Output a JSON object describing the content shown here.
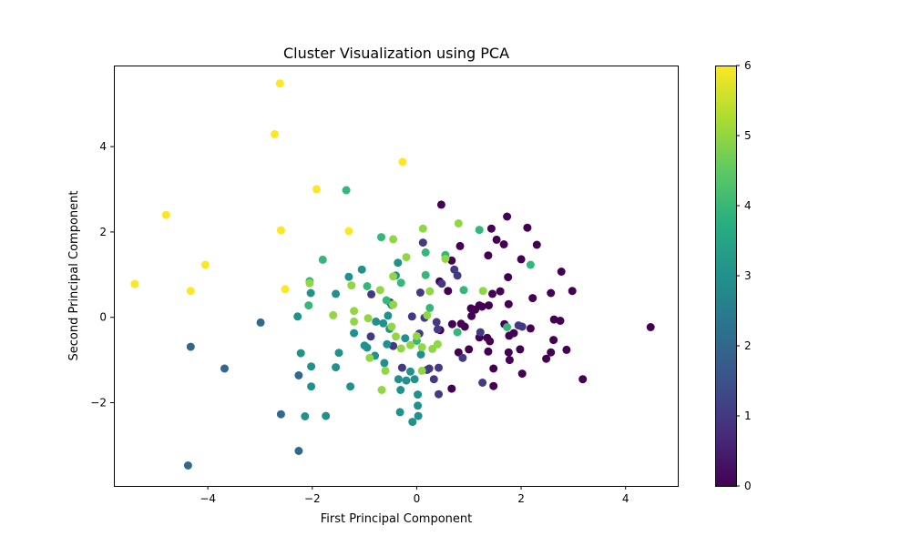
{
  "chart_data": {
    "type": "scatter",
    "title": "Cluster Visualization using PCA",
    "xlabel": "First Principal Component",
    "ylabel": "Second Principal Component",
    "xlim": [
      -5.8,
      5.0
    ],
    "ylim": [
      -3.95,
      5.9
    ],
    "xticks": [
      -4,
      -2,
      0,
      2,
      4
    ],
    "yticks": [
      -2,
      0,
      2,
      4
    ],
    "grid": false,
    "colorbar": {
      "min": 0,
      "max": 6,
      "ticks": [
        0,
        1,
        2,
        3,
        4,
        5,
        6
      ],
      "colormap": "viridis"
    },
    "points": [
      {
        "x": 4.48,
        "y": -0.23,
        "c": 0
      },
      {
        "x": 3.18,
        "y": -1.45,
        "c": 0
      },
      {
        "x": 2.98,
        "y": 0.62,
        "c": 0
      },
      {
        "x": 2.77,
        "y": 1.07,
        "c": 0
      },
      {
        "x": 2.75,
        "y": -0.08,
        "c": 0
      },
      {
        "x": 2.63,
        "y": -0.05,
        "c": 0
      },
      {
        "x": 2.87,
        "y": -0.76,
        "c": 0
      },
      {
        "x": 2.62,
        "y": -0.53,
        "c": 0
      },
      {
        "x": 2.57,
        "y": -0.82,
        "c": 0
      },
      {
        "x": 2.48,
        "y": -0.97,
        "c": 0
      },
      {
        "x": 2.57,
        "y": 0.57,
        "c": 0
      },
      {
        "x": 2.3,
        "y": 1.7,
        "c": 0
      },
      {
        "x": 2.12,
        "y": 2.1,
        "c": 0
      },
      {
        "x": 2.22,
        "y": 0.45,
        "c": 0
      },
      {
        "x": 2.18,
        "y": -0.26,
        "c": 0
      },
      {
        "x": 2.0,
        "y": 1.36,
        "c": 0
      },
      {
        "x": 1.98,
        "y": -0.75,
        "c": 0
      },
      {
        "x": 2.02,
        "y": -1.32,
        "c": 0
      },
      {
        "x": 1.86,
        "y": -0.37,
        "c": 0
      },
      {
        "x": 1.77,
        "y": -0.43,
        "c": 0
      },
      {
        "x": 1.76,
        "y": -0.82,
        "c": 0
      },
      {
        "x": 1.78,
        "y": -1.0,
        "c": 0
      },
      {
        "x": 1.68,
        "y": -0.16,
        "c": 0
      },
      {
        "x": 1.76,
        "y": 0.31,
        "c": 0
      },
      {
        "x": 1.75,
        "y": 0.94,
        "c": 0
      },
      {
        "x": 1.73,
        "y": 2.36,
        "c": 0
      },
      {
        "x": 1.67,
        "y": 1.71,
        "c": 0
      },
      {
        "x": 1.53,
        "y": 1.82,
        "c": 0
      },
      {
        "x": 1.6,
        "y": 0.61,
        "c": 0
      },
      {
        "x": 1.45,
        "y": 0.55,
        "c": 0
      },
      {
        "x": 1.43,
        "y": 2.08,
        "c": 0
      },
      {
        "x": 1.37,
        "y": 1.45,
        "c": 0
      },
      {
        "x": 1.38,
        "y": 0.28,
        "c": 0
      },
      {
        "x": 1.35,
        "y": -0.48,
        "c": 0
      },
      {
        "x": 1.4,
        "y": -0.56,
        "c": 0
      },
      {
        "x": 1.37,
        "y": -0.8,
        "c": 0
      },
      {
        "x": 1.47,
        "y": -1.2,
        "c": 0
      },
      {
        "x": 1.47,
        "y": -1.61,
        "c": 0
      },
      {
        "x": 1.25,
        "y": 0.25,
        "c": 0
      },
      {
        "x": 1.2,
        "y": 0.28,
        "c": 0
      },
      {
        "x": 1.12,
        "y": 0.18,
        "c": 0
      },
      {
        "x": 1.2,
        "y": -0.47,
        "c": 0
      },
      {
        "x": 1.04,
        "y": 0.21,
        "c": 0
      },
      {
        "x": 1.05,
        "y": 0.03,
        "c": 0
      },
      {
        "x": 1.0,
        "y": -0.75,
        "c": 0
      },
      {
        "x": 0.85,
        "y": -0.15,
        "c": 0
      },
      {
        "x": 0.92,
        "y": -0.22,
        "c": 0
      },
      {
        "x": 0.8,
        "y": -0.82,
        "c": 0
      },
      {
        "x": 0.83,
        "y": 1.67,
        "c": 0
      },
      {
        "x": 0.67,
        "y": 1.33,
        "c": 0
      },
      {
        "x": 0.6,
        "y": 0.62,
        "c": 0
      },
      {
        "x": 0.47,
        "y": 2.64,
        "c": 0
      },
      {
        "x": 0.44,
        "y": 0.84,
        "c": 0
      },
      {
        "x": 0.68,
        "y": -0.16,
        "c": 0
      },
      {
        "x": 0.45,
        "y": -0.3,
        "c": 0
      },
      {
        "x": 0.67,
        "y": -1.67,
        "c": 0
      },
      {
        "x": 1.26,
        "y": -1.53,
        "c": 1
      },
      {
        "x": 0.78,
        "y": 0.98,
        "c": 1
      },
      {
        "x": 0.72,
        "y": 1.12,
        "c": 1
      },
      {
        "x": 0.48,
        "y": 0.79,
        "c": 1
      },
      {
        "x": 0.38,
        "y": -0.11,
        "c": 1
      },
      {
        "x": 0.4,
        "y": -0.28,
        "c": 1
      },
      {
        "x": 0.42,
        "y": -1.18,
        "c": 1
      },
      {
        "x": 0.42,
        "y": -1.8,
        "c": 1
      },
      {
        "x": 0.24,
        "y": -1.2,
        "c": 1
      },
      {
        "x": 0.33,
        "y": -1.45,
        "c": 1
      },
      {
        "x": 0.15,
        "y": -0.01,
        "c": 1
      },
      {
        "x": 0.12,
        "y": 1.75,
        "c": 1
      },
      {
        "x": 0.07,
        "y": 0.58,
        "c": 1
      },
      {
        "x": 0.05,
        "y": -0.38,
        "c": 1
      },
      {
        "x": 0.88,
        "y": -0.95,
        "c": 1
      },
      {
        "x": 1.22,
        "y": -0.35,
        "c": 1
      },
      {
        "x": 1.95,
        "y": -0.19,
        "c": 1
      },
      {
        "x": 2.02,
        "y": -0.22,
        "c": 1
      },
      {
        "x": -0.09,
        "y": 0.02,
        "c": 1
      },
      {
        "x": -0.28,
        "y": -1.18,
        "c": 1
      },
      {
        "x": -0.45,
        "y": -0.67,
        "c": 1
      },
      {
        "x": -0.88,
        "y": -0.45,
        "c": 1
      },
      {
        "x": -0.87,
        "y": 0.54,
        "c": 1
      },
      {
        "x": -0.51,
        "y": 0.35,
        "c": 1
      },
      {
        "x": 0.2,
        "y": -1.23,
        "c": 1
      },
      {
        "x": -2.99,
        "y": -0.12,
        "c": 2
      },
      {
        "x": -4.33,
        "y": -0.69,
        "c": 2
      },
      {
        "x": -3.68,
        "y": -1.2,
        "c": 2
      },
      {
        "x": -2.6,
        "y": -2.27,
        "c": 2
      },
      {
        "x": -4.38,
        "y": -3.47,
        "c": 2
      },
      {
        "x": -2.26,
        "y": -3.13,
        "c": 2
      },
      {
        "x": -2.26,
        "y": -1.36,
        "c": 2
      },
      {
        "x": -2.14,
        "y": -2.32,
        "c": 3
      },
      {
        "x": -2.28,
        "y": 0.02,
        "c": 3
      },
      {
        "x": -2.22,
        "y": -0.84,
        "c": 3
      },
      {
        "x": -2.02,
        "y": -1.15,
        "c": 3
      },
      {
        "x": -2.02,
        "y": -1.62,
        "c": 3
      },
      {
        "x": -1.74,
        "y": -2.31,
        "c": 3
      },
      {
        "x": -1.55,
        "y": -1.17,
        "c": 3
      },
      {
        "x": -1.49,
        "y": -0.83,
        "c": 3
      },
      {
        "x": -1.3,
        "y": 0.95,
        "c": 3
      },
      {
        "x": -1.27,
        "y": -1.62,
        "c": 3
      },
      {
        "x": -1.2,
        "y": -0.37,
        "c": 3
      },
      {
        "x": -1.05,
        "y": 1.12,
        "c": 3
      },
      {
        "x": -1.0,
        "y": -0.66,
        "c": 3
      },
      {
        "x": -0.95,
        "y": -0.71,
        "c": 3
      },
      {
        "x": -0.8,
        "y": -0.9,
        "c": 3
      },
      {
        "x": -0.78,
        "y": -0.1,
        "c": 3
      },
      {
        "x": -0.64,
        "y": -0.14,
        "c": 3
      },
      {
        "x": -0.62,
        "y": -1.07,
        "c": 3
      },
      {
        "x": -0.57,
        "y": -0.63,
        "c": 3
      },
      {
        "x": -0.55,
        "y": 0.04,
        "c": 3
      },
      {
        "x": -0.52,
        "y": -0.27,
        "c": 3
      },
      {
        "x": -0.48,
        "y": 0.29,
        "c": 3
      },
      {
        "x": -0.4,
        "y": 0.98,
        "c": 3
      },
      {
        "x": -0.36,
        "y": 1.28,
        "c": 3
      },
      {
        "x": -0.35,
        "y": -1.45,
        "c": 3
      },
      {
        "x": -0.31,
        "y": -1.7,
        "c": 3
      },
      {
        "x": -0.32,
        "y": -2.22,
        "c": 3
      },
      {
        "x": -0.22,
        "y": -0.49,
        "c": 3
      },
      {
        "x": -0.2,
        "y": -1.48,
        "c": 3
      },
      {
        "x": -0.12,
        "y": -1.27,
        "c": 3
      },
      {
        "x": -0.08,
        "y": -2.45,
        "c": 3
      },
      {
        "x": -0.04,
        "y": -1.45,
        "c": 3
      },
      {
        "x": 0.02,
        "y": -1.81,
        "c": 3
      },
      {
        "x": 0.02,
        "y": -2.07,
        "c": 3
      },
      {
        "x": 0.03,
        "y": -2.31,
        "c": 3
      },
      {
        "x": 0.08,
        "y": -0.87,
        "c": 3
      },
      {
        "x": -1.55,
        "y": 0.55,
        "c": 3
      },
      {
        "x": -2.03,
        "y": 0.57,
        "c": 3
      },
      {
        "x": -1.35,
        "y": 2.98,
        "c": 4
      },
      {
        "x": -1.8,
        "y": 1.35,
        "c": 4
      },
      {
        "x": -2.05,
        "y": 0.85,
        "c": 4
      },
      {
        "x": -2.07,
        "y": 0.28,
        "c": 4
      },
      {
        "x": -0.95,
        "y": 0.73,
        "c": 4
      },
      {
        "x": -0.68,
        "y": 1.88,
        "c": 4
      },
      {
        "x": -0.58,
        "y": 0.4,
        "c": 4
      },
      {
        "x": -0.3,
        "y": 0.81,
        "c": 4
      },
      {
        "x": 0.17,
        "y": 1.52,
        "c": 4
      },
      {
        "x": 0.17,
        "y": 0.99,
        "c": 4
      },
      {
        "x": 0.25,
        "y": 0.22,
        "c": 4
      },
      {
        "x": 0.55,
        "y": 1.46,
        "c": 4
      },
      {
        "x": 0.78,
        "y": -0.35,
        "c": 4
      },
      {
        "x": 0.9,
        "y": 0.64,
        "c": 4
      },
      {
        "x": 1.2,
        "y": 2.05,
        "c": 4
      },
      {
        "x": 1.73,
        "y": -0.23,
        "c": 4
      },
      {
        "x": 2.18,
        "y": 1.23,
        "c": 4
      },
      {
        "x": 0.0,
        "y": -0.55,
        "c": 4
      },
      {
        "x": -2.05,
        "y": 0.8,
        "c": 5
      },
      {
        "x": -1.6,
        "y": 0.05,
        "c": 5
      },
      {
        "x": -1.25,
        "y": 0.75,
        "c": 5
      },
      {
        "x": -1.2,
        "y": 0.15,
        "c": 5
      },
      {
        "x": -1.2,
        "y": -0.1,
        "c": 5
      },
      {
        "x": -0.9,
        "y": -0.95,
        "c": 5
      },
      {
        "x": -0.93,
        "y": -0.02,
        "c": 5
      },
      {
        "x": -0.7,
        "y": 0.64,
        "c": 5
      },
      {
        "x": -0.67,
        "y": -1.7,
        "c": 5
      },
      {
        "x": -0.6,
        "y": -1.25,
        "c": 5
      },
      {
        "x": -0.48,
        "y": -0.22,
        "c": 5
      },
      {
        "x": -0.45,
        "y": 0.96,
        "c": 5
      },
      {
        "x": -0.45,
        "y": 1.83,
        "c": 5
      },
      {
        "x": -0.4,
        "y": -0.45,
        "c": 5
      },
      {
        "x": -0.3,
        "y": -0.73,
        "c": 5
      },
      {
        "x": -0.2,
        "y": 1.41,
        "c": 5
      },
      {
        "x": -0.12,
        "y": -0.65,
        "c": 5
      },
      {
        "x": 0.0,
        "y": -0.44,
        "c": 5
      },
      {
        "x": 0.1,
        "y": -1.25,
        "c": 5
      },
      {
        "x": 0.1,
        "y": -0.7,
        "c": 5
      },
      {
        "x": 0.12,
        "y": 2.08,
        "c": 5
      },
      {
        "x": 0.2,
        "y": 0.05,
        "c": 5
      },
      {
        "x": 0.25,
        "y": 0.61,
        "c": 5
      },
      {
        "x": 0.3,
        "y": -0.74,
        "c": 5
      },
      {
        "x": 0.4,
        "y": -0.63,
        "c": 5
      },
      {
        "x": 0.55,
        "y": 1.37,
        "c": 5
      },
      {
        "x": 0.8,
        "y": 2.2,
        "c": 5
      },
      {
        "x": 1.27,
        "y": 0.62,
        "c": 5
      },
      {
        "x": -0.45,
        "y": 0.3,
        "c": 5
      },
      {
        "x": -2.62,
        "y": 5.48,
        "c": 6
      },
      {
        "x": -2.72,
        "y": 4.29,
        "c": 6
      },
      {
        "x": -0.27,
        "y": 3.64,
        "c": 6
      },
      {
        "x": -1.92,
        "y": 3.0,
        "c": 6
      },
      {
        "x": -4.8,
        "y": 2.4,
        "c": 6
      },
      {
        "x": -2.6,
        "y": 2.04,
        "c": 6
      },
      {
        "x": -1.3,
        "y": 2.02,
        "c": 6
      },
      {
        "x": -4.05,
        "y": 1.23,
        "c": 6
      },
      {
        "x": -5.4,
        "y": 0.78,
        "c": 6
      },
      {
        "x": -4.33,
        "y": 0.62,
        "c": 6
      },
      {
        "x": -2.52,
        "y": 0.66,
        "c": 6
      }
    ]
  }
}
